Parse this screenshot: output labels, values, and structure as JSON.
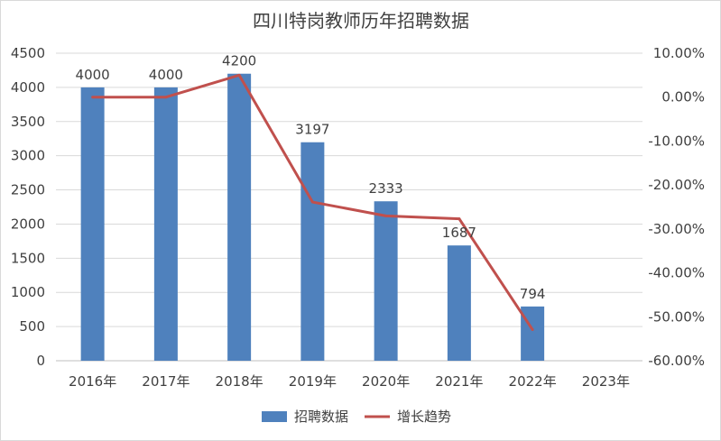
{
  "chart_data": {
    "type": "bar",
    "title": "四川特岗教师历年招聘数据",
    "categories": [
      "2016年",
      "2017年",
      "2018年",
      "2019年",
      "2020年",
      "2021年",
      "2022年",
      "2023年"
    ],
    "series": [
      {
        "name": "招聘数据",
        "type": "bar",
        "axis": "left",
        "color": "#4f81bd",
        "values": [
          4000,
          4000,
          4200,
          3197,
          2333,
          1687,
          794,
          null
        ],
        "labels": [
          "4000",
          "4000",
          "4200",
          "3197",
          "2333",
          "1687",
          "794",
          ""
        ]
      },
      {
        "name": "增长趋势",
        "type": "line",
        "axis": "right",
        "color": "#c0504d",
        "values": [
          0.0,
          0.0,
          5.0,
          -23.88,
          -27.03,
          -27.69,
          -52.93,
          null
        ]
      }
    ],
    "y_left": {
      "ylim": [
        0,
        4500
      ],
      "ticks": [
        "0",
        "500",
        "1000",
        "1500",
        "2000",
        "2500",
        "3000",
        "3500",
        "4000",
        "4500"
      ]
    },
    "y_right": {
      "ylim": [
        -60,
        10
      ],
      "ticks": [
        "-60.00%",
        "-50.00%",
        "-40.00%",
        "-30.00%",
        "-20.00%",
        "-10.00%",
        "0.00%",
        "10.00%"
      ]
    },
    "grid": true,
    "legend_position": "bottom"
  }
}
